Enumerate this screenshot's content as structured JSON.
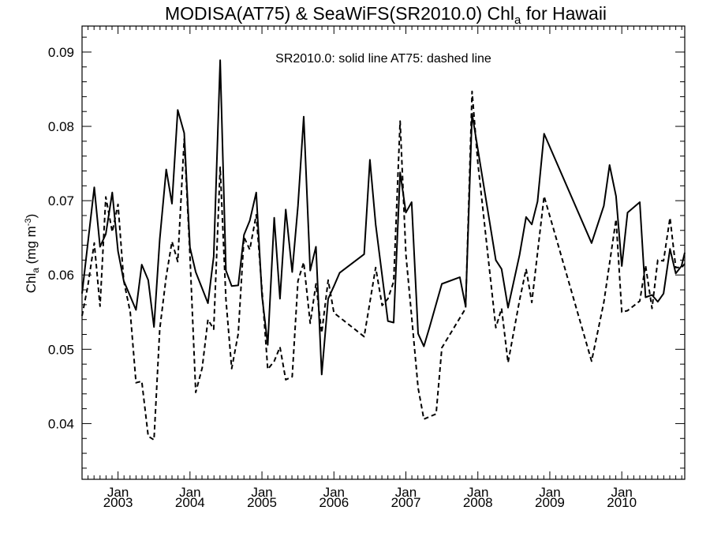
{
  "chart_data": {
    "type": "line",
    "title": {
      "main": "MODISA(AT75) & SeaWiFS(SR2010.0)  Chl",
      "subscript": "a",
      "suffix": " for Hawaii"
    },
    "ylabel": {
      "main": "Chl",
      "subscript": "a",
      "unit_prefix": " (mg m",
      "unit_superscript": "-3",
      "unit_suffix": ")"
    },
    "annotation": "SR2010.0: solid line   AT75: dashed line",
    "ylim": [
      0.0325,
      0.0935
    ],
    "yticks": [
      0.04,
      0.05,
      0.06,
      0.07,
      0.08,
      0.09
    ],
    "ytick_labels": [
      "0.04",
      "0.05",
      "0.06",
      "0.07",
      "0.08",
      "0.09"
    ],
    "y_minor_step": 0.002,
    "xlim": [
      2002.5,
      2010.875
    ],
    "x_minor_step": 0.0833333,
    "xticks": [
      {
        "x": 2003.0,
        "month": "Jan",
        "year": "2003"
      },
      {
        "x": 2004.0,
        "month": "Jan",
        "year": "2004"
      },
      {
        "x": 2005.0,
        "month": "Jan",
        "year": "2005"
      },
      {
        "x": 2006.0,
        "month": "Jan",
        "year": "2006"
      },
      {
        "x": 2007.0,
        "month": "Jan",
        "year": "2007"
      },
      {
        "x": 2008.0,
        "month": "Jan",
        "year": "2008"
      },
      {
        "x": 2009.0,
        "month": "Jan",
        "year": "2009"
      },
      {
        "x": 2010.0,
        "month": "Jan",
        "year": "2010"
      }
    ],
    "grid": false,
    "series": [
      {
        "name": "SR2010.0",
        "style": "solid",
        "color": "#000000",
        "x": [
          2002.5,
          2002.67,
          2002.75,
          2002.83,
          2002.92,
          2003.0,
          2003.08,
          2003.25,
          2003.33,
          2003.42,
          2003.5,
          2003.58,
          2003.67,
          2003.75,
          2003.83,
          2003.92,
          2004.0,
          2004.08,
          2004.25,
          2004.33,
          2004.42,
          2004.5,
          2004.58,
          2004.67,
          2004.75,
          2004.83,
          2004.92,
          2005.0,
          2005.08,
          2005.17,
          2005.25,
          2005.33,
          2005.42,
          2005.5,
          2005.58,
          2005.67,
          2005.75,
          2005.83,
          2005.92,
          2006.0,
          2006.08,
          2006.42,
          2006.5,
          2006.58,
          2006.75,
          2006.83,
          2006.92,
          2007.0,
          2007.08,
          2007.17,
          2007.25,
          2007.33,
          2007.5,
          2007.75,
          2007.83,
          2007.92,
          2008.25,
          2008.33,
          2008.42,
          2008.58,
          2008.67,
          2008.75,
          2008.83,
          2008.92,
          2009.58,
          2009.75,
          2009.83,
          2009.92,
          2010.0,
          2010.08,
          2010.25,
          2010.33,
          2010.42,
          2010.5,
          2010.58,
          2010.67,
          2010.75,
          2010.83,
          2010.875
        ],
        "values": [
          0.0575,
          0.0718,
          0.0638,
          0.0655,
          0.0711,
          0.0632,
          0.0592,
          0.0553,
          0.0614,
          0.0593,
          0.053,
          0.0648,
          0.0742,
          0.0696,
          0.0822,
          0.0791,
          0.0637,
          0.0604,
          0.0562,
          0.0625,
          0.0889,
          0.0606,
          0.0585,
          0.0586,
          0.0654,
          0.0673,
          0.0711,
          0.0572,
          0.0506,
          0.0677,
          0.0568,
          0.0688,
          0.0604,
          0.0693,
          0.0813,
          0.0606,
          0.0638,
          0.0466,
          0.0568,
          0.0585,
          0.0603,
          0.0628,
          0.0755,
          0.0668,
          0.0538,
          0.0536,
          0.0738,
          0.0684,
          0.0698,
          0.0521,
          0.0504,
          0.053,
          0.0588,
          0.0597,
          0.0558,
          0.0817,
          0.062,
          0.0608,
          0.0556,
          0.0627,
          0.0678,
          0.0668,
          0.0699,
          0.079,
          0.0643,
          0.0693,
          0.0748,
          0.0706,
          0.0612,
          0.0684,
          0.0698,
          0.057,
          0.0573,
          0.0564,
          0.0575,
          0.0635,
          0.0602,
          0.0612,
          0.063
        ]
      },
      {
        "name": "AT75",
        "style": "dashed",
        "color": "#000000",
        "x": [
          2002.5,
          2002.58,
          2002.67,
          2002.75,
          2002.83,
          2002.92,
          2003.0,
          2003.08,
          2003.17,
          2003.25,
          2003.33,
          2003.42,
          2003.5,
          2003.58,
          2003.67,
          2003.75,
          2003.83,
          2003.92,
          2004.0,
          2004.08,
          2004.17,
          2004.25,
          2004.33,
          2004.42,
          2004.5,
          2004.58,
          2004.67,
          2004.75,
          2004.83,
          2004.92,
          2005.0,
          2005.08,
          2005.17,
          2005.25,
          2005.33,
          2005.42,
          2005.5,
          2005.58,
          2005.67,
          2005.75,
          2005.83,
          2005.92,
          2006.0,
          2006.08,
          2006.42,
          2006.58,
          2006.67,
          2006.75,
          2006.83,
          2006.92,
          2007.0,
          2007.08,
          2007.17,
          2007.25,
          2007.42,
          2007.5,
          2007.83,
          2007.92,
          2008.0,
          2008.25,
          2008.33,
          2008.42,
          2008.58,
          2008.67,
          2008.75,
          2008.92,
          2009.58,
          2009.75,
          2009.92,
          2010.0,
          2010.08,
          2010.25,
          2010.33,
          2010.42,
          2010.5,
          2010.58,
          2010.67,
          2010.75,
          2010.83,
          2010.875
        ],
        "values": [
          0.0545,
          0.0585,
          0.0643,
          0.0558,
          0.0705,
          0.0658,
          0.0695,
          0.0592,
          0.055,
          0.0455,
          0.0457,
          0.0383,
          0.0378,
          0.0527,
          0.0598,
          0.0645,
          0.0618,
          0.0783,
          0.0626,
          0.0442,
          0.0475,
          0.054,
          0.0527,
          0.0745,
          0.0567,
          0.0474,
          0.0521,
          0.0651,
          0.0634,
          0.0681,
          0.058,
          0.0473,
          0.0484,
          0.0503,
          0.0459,
          0.0463,
          0.0592,
          0.0617,
          0.0535,
          0.0588,
          0.0522,
          0.0593,
          0.0549,
          0.0543,
          0.0517,
          0.061,
          0.0559,
          0.0568,
          0.0591,
          0.0807,
          0.0628,
          0.0544,
          0.0448,
          0.0406,
          0.0413,
          0.0502,
          0.0555,
          0.0847,
          0.0751,
          0.0529,
          0.0555,
          0.0482,
          0.0566,
          0.0608,
          0.0563,
          0.0706,
          0.0484,
          0.0563,
          0.0675,
          0.055,
          0.0552,
          0.0565,
          0.0613,
          0.0555,
          0.062,
          0.0619,
          0.0677,
          0.061,
          0.061,
          0.0615
        ]
      }
    ]
  }
}
